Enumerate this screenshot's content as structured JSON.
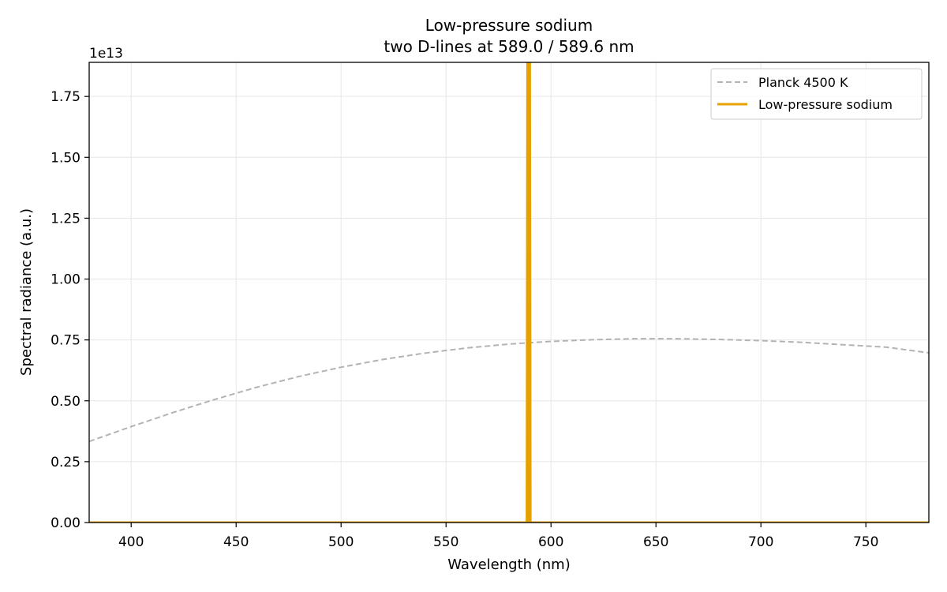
{
  "chart_data": {
    "type": "line",
    "title": "Low-pressure sodium",
    "subtitle": "two D-lines at 589.0 / 589.6 nm",
    "xlabel": "Wavelength (nm)",
    "ylabel": "Spectral radiance  (a.u.)",
    "y_offset_label": "1e13",
    "xlim": [
      380,
      780
    ],
    "ylim": [
      0,
      18900000000000
    ],
    "x_ticks": [
      400,
      450,
      500,
      550,
      600,
      650,
      700,
      750
    ],
    "x_tick_labels": [
      "400",
      "450",
      "500",
      "550",
      "600",
      "650",
      "700",
      "750"
    ],
    "y_ticks": [
      0,
      2500000000000,
      5000000000000,
      7500000000000,
      10000000000000,
      12500000000000,
      15000000000000,
      17500000000000
    ],
    "y_tick_labels": [
      "0.00",
      "0.25",
      "0.50",
      "0.75",
      "1.00",
      "1.25",
      "1.50",
      "1.75"
    ],
    "grid": true,
    "legend_position": "top-right",
    "series": [
      {
        "name": "Planck 4500 K",
        "style": "dashed",
        "color": "#b3b3b3",
        "x": [
          380,
          400,
          420,
          440,
          460,
          480,
          500,
          520,
          540,
          560,
          580,
          600,
          620,
          640,
          660,
          680,
          700,
          720,
          740,
          760,
          780
        ],
        "y": [
          3330000000000,
          3940000000000,
          4520000000000,
          5060000000000,
          5560000000000,
          6000000000000,
          6380000000000,
          6700000000000,
          6960000000000,
          7170000000000,
          7330000000000,
          7440000000000,
          7510000000000,
          7550000000000,
          7550000000000,
          7520000000000,
          7470000000000,
          7400000000000,
          7300000000000,
          7200000000000,
          6970000000000
        ]
      },
      {
        "name": "Low-pressure sodium",
        "style": "solid",
        "color": "#e6a100",
        "x": [
          380,
          588.2,
          588.5,
          588.8,
          589.0,
          589.2,
          589.3,
          589.4,
          589.6,
          589.9,
          590.2,
          780
        ],
        "y": [
          0,
          0,
          0,
          19500000000000,
          19500000000000,
          19500000000000,
          0,
          19500000000000,
          19500000000000,
          19500000000000,
          0,
          0
        ]
      }
    ]
  }
}
